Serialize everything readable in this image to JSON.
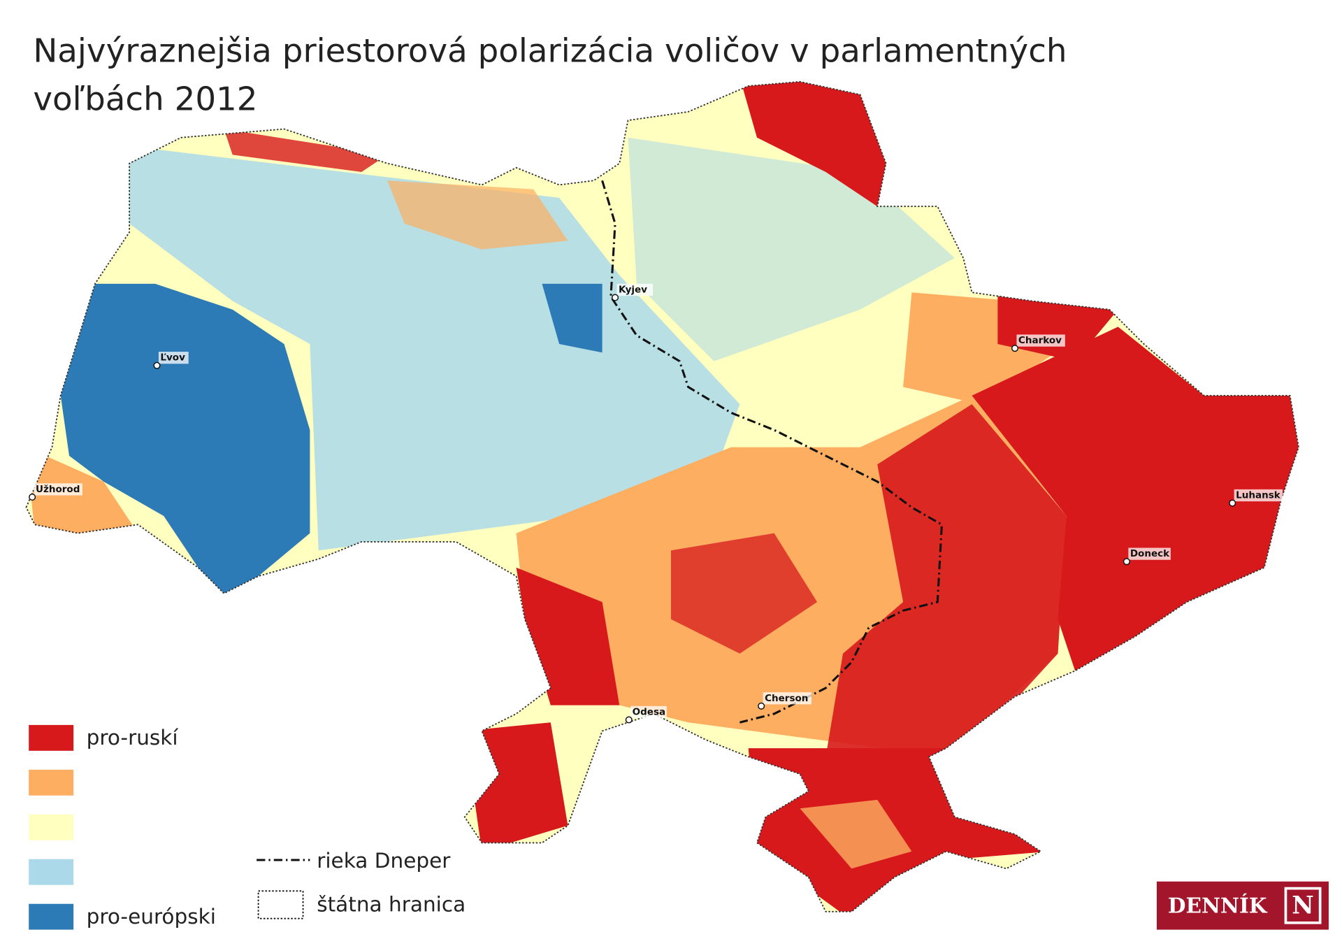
{
  "title": "Najvýraznejšia priestorová polarizácia voličov v parlamentných voľbách 2012",
  "cities": [
    {
      "label": "Kyjev"
    },
    {
      "label": "Ľvov"
    },
    {
      "label": "Užhorod"
    },
    {
      "label": "Charkov"
    },
    {
      "label": "Luhansk"
    },
    {
      "label": "Doneck"
    },
    {
      "label": "Cherson"
    },
    {
      "label": "Odesa"
    }
  ],
  "legend": {
    "items": [
      {
        "label": "pro-ruskí",
        "color": "#d7191c"
      },
      {
        "color": "#fdae61"
      },
      {
        "color": "#ffffbf"
      },
      {
        "color": "#abd9e9"
      },
      {
        "label": "pro-európski",
        "color": "#2c7bb6"
      }
    ],
    "lines": [
      {
        "label": "rieka Dneper"
      },
      {
        "label": "štátna hranica"
      }
    ]
  },
  "brand": {
    "name": "DENNÍK",
    "mark": "N"
  }
}
